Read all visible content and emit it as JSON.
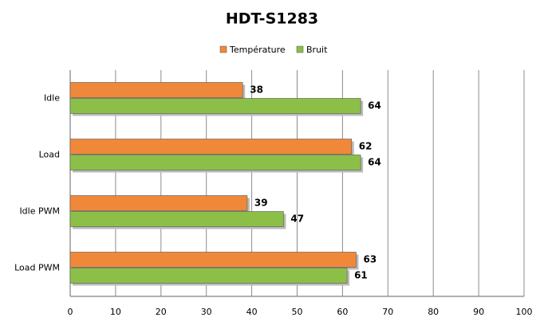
{
  "chart_data": {
    "type": "hbar",
    "title": "HDT-S1283",
    "categories": [
      "Idle",
      "Load",
      "Idle PWM",
      "Load PWM"
    ],
    "series": [
      {
        "name": "Température",
        "color": "#f0883a",
        "values": [
          38,
          62,
          39,
          63
        ]
      },
      {
        "name": "Bruit",
        "color": "#8cbf48",
        "values": [
          64,
          64,
          47,
          61
        ]
      }
    ],
    "xlim": [
      0,
      100
    ],
    "xticks": [
      0,
      10,
      20,
      30,
      40,
      50,
      60,
      70,
      80,
      90,
      100
    ],
    "grid": true,
    "legend": "top"
  }
}
